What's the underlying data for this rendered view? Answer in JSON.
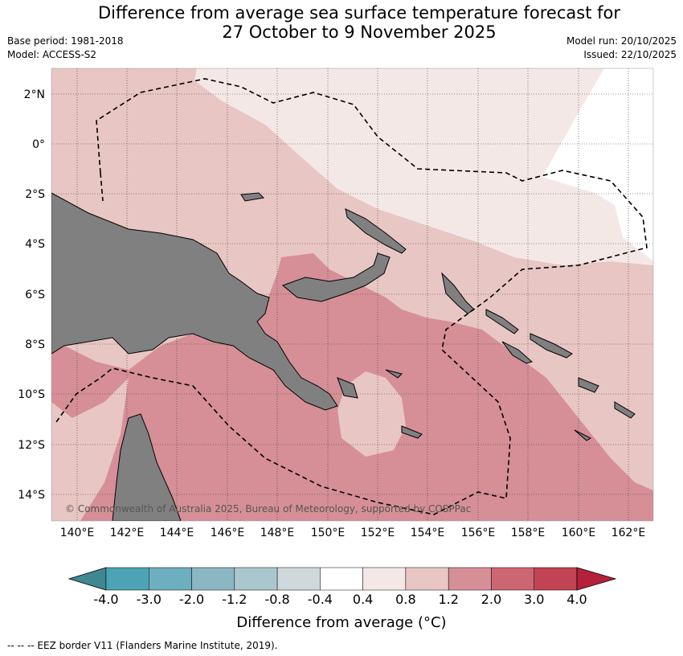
{
  "title_line1": "Difference from average sea surface temperature forecast for",
  "title_line2": "27 October to 9 November 2025",
  "base_period": "Base period: 1981-2018",
  "model": "Model: ACCESS-S2",
  "model_run": "Model run: 20/10/2025",
  "issued": "Issued: 22/10/2025",
  "copyright": "© Commonwealth of Australia 2025, Bureau of Meteorology, supported by COSPPac",
  "footnote": "-- -- -- EEZ border V11 (Flanders Marine Institute, 2019).",
  "map": {
    "lon_ticks": [
      "140°E",
      "142°E",
      "144°E",
      "146°E",
      "148°E",
      "150°E",
      "152°E",
      "154°E",
      "156°E",
      "158°E",
      "160°E",
      "162°E"
    ],
    "lat_ticks": [
      "2°N",
      "0°",
      "2°S",
      "4°S",
      "6°S",
      "8°S",
      "10°S",
      "12°S",
      "14°S"
    ],
    "colors": {
      "land": "#808080",
      "band_0_4_0_8": "#f4e8e6",
      "band_0_8_1_2": "#e8c6c3",
      "band_1_2_2_0": "#d68f97"
    }
  },
  "colorbar": {
    "title": "Difference from average (°C)",
    "labels": [
      "-4.0",
      "-3.0",
      "-2.0",
      "-1.2",
      "-0.8",
      "-0.4",
      "0.4",
      "0.8",
      "1.2",
      "2.0",
      "3.0",
      "4.0"
    ],
    "colors": [
      "#3f8891",
      "#4ba3b5",
      "#6daebf",
      "#8bb7c4",
      "#a9c7cc",
      "#cfd8db",
      "#ffffff",
      "#f4e8e6",
      "#e8c6c3",
      "#d68f97",
      "#cd6673",
      "#c14354",
      "#b5203b"
    ]
  }
}
